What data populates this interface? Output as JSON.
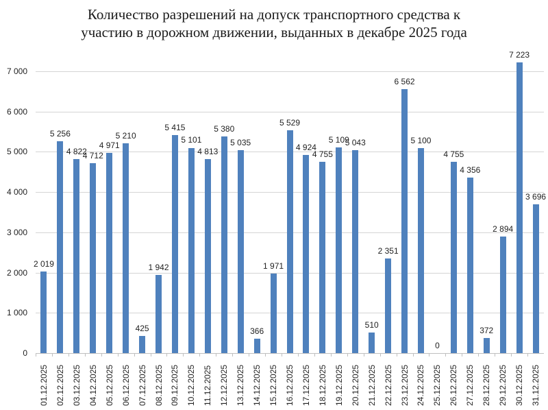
{
  "chart_data": {
    "type": "bar",
    "title": "Количество разрешений на допуск транспортного средства к участию в дорожном движении, выданных в декабре 2025 года",
    "title_lines": [
      "Количество разрешений на допуск транспортного средства к",
      "участию в дорожном движении, выданных в декабре 2025 года"
    ],
    "xlabel": "",
    "ylabel": "",
    "ylim": [
      0,
      7000
    ],
    "yticks": [
      0,
      1000,
      2000,
      3000,
      4000,
      5000,
      6000,
      7000
    ],
    "ytick_labels": [
      "0",
      "1 000",
      "2 000",
      "3 000",
      "4 000",
      "5 000",
      "6 000",
      "7 000"
    ],
    "grid": true,
    "legend": null,
    "bar_color": "#4f81bd",
    "categories": [
      "01.12.2025",
      "02.12.2025",
      "03.12.2025",
      "04.12.2025",
      "05.12.2025",
      "06.12.2025",
      "07.12.2025",
      "08.12.2025",
      "09.12.2025",
      "10.12.2025",
      "11.12.2025",
      "12.12.2025",
      "13.12.2025",
      "14.12.2025",
      "15.12.2025",
      "16.12.2025",
      "17.12.2025",
      "18.12.2025",
      "19.12.2025",
      "20.12.2025",
      "21.12.2025",
      "22.12.2025",
      "23.12.2025",
      "24.12.2025",
      "25.12.2025",
      "26.12.2025",
      "27.12.2025",
      "28.12.2025",
      "29.12.2025",
      "30.12.2025",
      "31.12.2025"
    ],
    "values": [
      2019,
      5256,
      4822,
      4712,
      4971,
      5210,
      425,
      1942,
      5415,
      5101,
      4813,
      5380,
      5035,
      366,
      1971,
      5529,
      4924,
      4755,
      5109,
      5043,
      510,
      2351,
      6562,
      5100,
      0,
      4755,
      4356,
      372,
      2894,
      7223,
      3696
    ],
    "value_labels": [
      "2 019",
      "5 256",
      "4 822",
      "4 712",
      "4 971",
      "5 210",
      "425",
      "1 942",
      "5 415",
      "5 101",
      "4 813",
      "5 380",
      "5 035",
      "366",
      "1 971",
      "5 529",
      "4 924",
      "4 755",
      "5 109",
      "5 043",
      "510",
      "2 351",
      "6 562",
      "5 100",
      "0",
      "4 755",
      "4 356",
      "372",
      "2 894",
      "7 223",
      "3 696"
    ]
  }
}
